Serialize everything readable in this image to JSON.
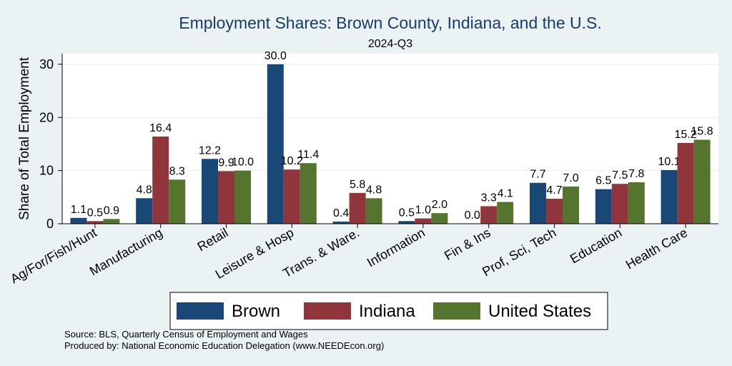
{
  "chart_data": {
    "type": "bar",
    "title": "Employment Shares: Brown County, Indiana, and the U.S.",
    "subtitle": "2024-Q3",
    "ylabel": "Share of Total Employment",
    "xlabel": "",
    "ylim": [
      0,
      32
    ],
    "yticks": [
      0,
      10,
      20,
      30
    ],
    "grid": true,
    "legend_position": "bottom",
    "categories": [
      "Ag/For/Fish/Hunt",
      "Manufacturing",
      "Retail",
      "Leisure & Hosp",
      "Trans. & Ware.",
      "Information",
      "Fin & Ins",
      "Prof, Sci, Tech",
      "Education",
      "Health Care"
    ],
    "series": [
      {
        "name": "Brown",
        "color": "#1a4876",
        "values": [
          1.1,
          4.8,
          12.2,
          30.0,
          0.4,
          0.5,
          0.0,
          7.7,
          6.5,
          10.1
        ],
        "labels": [
          "1.1",
          "4.8",
          "12.2",
          "30.0",
          "0.4",
          "0.5",
          "0.0",
          "7.7",
          "6.5",
          "10.1"
        ]
      },
      {
        "name": "Indiana",
        "color": "#90353b",
        "values": [
          0.5,
          16.4,
          9.9,
          10.2,
          5.8,
          1.0,
          3.3,
          4.7,
          7.5,
          15.2
        ],
        "labels": [
          "0.5",
          "16.4",
          "9.9",
          "10.2",
          "5.8",
          "1.0",
          "3.3",
          "4.7",
          "7.5",
          "15.2"
        ]
      },
      {
        "name": "United States",
        "color": "#55752f",
        "values": [
          0.9,
          8.3,
          10.0,
          11.4,
          4.8,
          2.0,
          4.1,
          7.0,
          7.8,
          15.8
        ],
        "labels": [
          "0.9",
          "8.3",
          "10.0",
          "11.4",
          "4.8",
          "2.0",
          "4.1",
          "7.0",
          "7.8",
          "15.8"
        ]
      }
    ],
    "notes": [
      "Source: BLS, Quarterly Census of Employment and Wages",
      "Produced by: National Economic Education Delegation (www.NEEDEcon.org)"
    ]
  }
}
